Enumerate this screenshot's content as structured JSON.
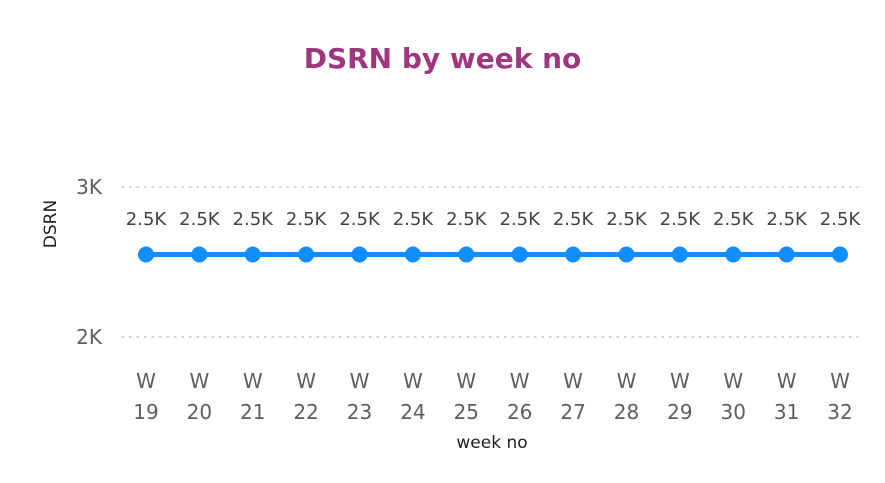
{
  "chart_data": {
    "type": "line",
    "title": "DSRN by week no",
    "xlabel": "week no",
    "ylabel": "DSRN",
    "categories": [
      [
        "W",
        "19"
      ],
      [
        "W",
        "20"
      ],
      [
        "W",
        "21"
      ],
      [
        "W",
        "22"
      ],
      [
        "W",
        "23"
      ],
      [
        "W",
        "24"
      ],
      [
        "W",
        "25"
      ],
      [
        "W",
        "26"
      ],
      [
        "W",
        "27"
      ],
      [
        "W",
        "28"
      ],
      [
        "W",
        "29"
      ],
      [
        "W",
        "30"
      ],
      [
        "W",
        "31"
      ],
      [
        "W",
        "32"
      ]
    ],
    "series": [
      {
        "values": [
          2550,
          2550,
          2550,
          2550,
          2550,
          2550,
          2550,
          2550,
          2550,
          2550,
          2550,
          2550,
          2550,
          2550
        ],
        "data_labels": [
          "2.5K",
          "2.5K",
          "2.5K",
          "2.5K",
          "2.5K",
          "2.5K",
          "2.5K",
          "2.5K",
          "2.5K",
          "2.5K",
          "2.5K",
          "2.5K",
          "2.5K",
          "2.5K"
        ]
      }
    ],
    "ylim": [
      2000,
      3000
    ],
    "yticks": [
      {
        "value": 3000,
        "label": "3K"
      },
      {
        "value": 2000,
        "label": "2K"
      }
    ],
    "grid": true,
    "colors": {
      "line": "#118dff",
      "title": "#a0367e",
      "grid": "#c8c6c4"
    }
  }
}
